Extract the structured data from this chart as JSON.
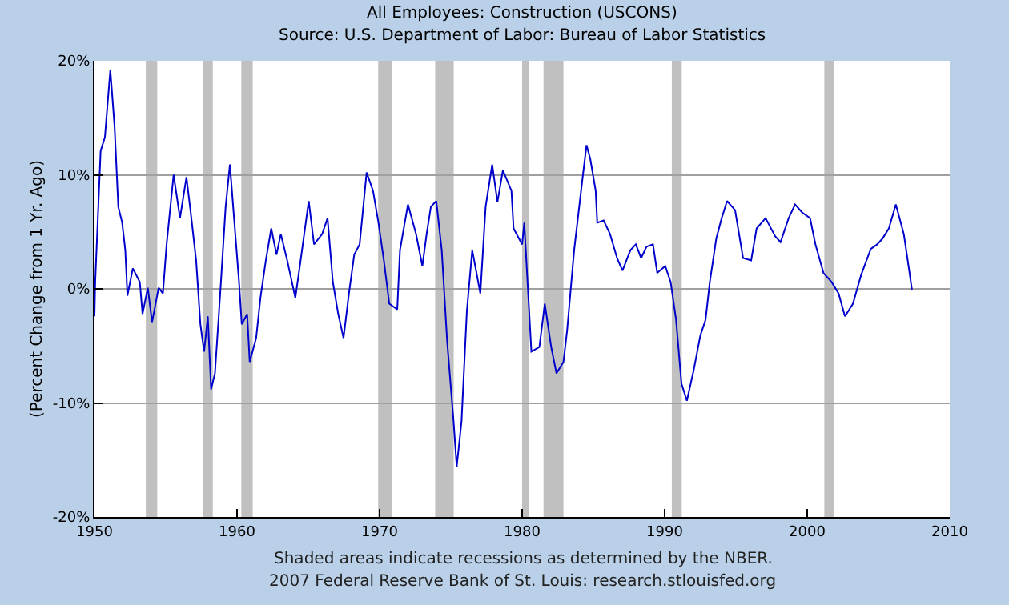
{
  "chart_data": {
    "type": "line",
    "title": "All Employees: Construction (USCONS)",
    "subtitle": "Source: U.S. Department of Labor: Bureau of Labor Statistics",
    "ylabel": "(Percent Change from 1 Yr. Ago)",
    "x": [
      1950.0,
      1950.05,
      1950.43,
      1950.73,
      1951.11,
      1951.41,
      1951.67,
      1951.94,
      1952.16,
      1952.31,
      1952.69,
      1953.18,
      1953.37,
      1953.74,
      1954.04,
      1954.5,
      1954.8,
      1955.06,
      1955.55,
      1956.0,
      1956.45,
      1956.75,
      1957.13,
      1957.43,
      1957.69,
      1957.95,
      1958.18,
      1958.45,
      1958.82,
      1959.2,
      1959.5,
      1959.76,
      1960.14,
      1960.33,
      1960.71,
      1960.89,
      1961.34,
      1961.64,
      1962.02,
      1962.4,
      1962.77,
      1963.07,
      1963.52,
      1964.09,
      1964.46,
      1965.03,
      1965.4,
      1965.97,
      1966.35,
      1966.72,
      1967.1,
      1967.47,
      1967.85,
      1968.22,
      1968.6,
      1969.09,
      1969.54,
      1969.92,
      1970.3,
      1970.68,
      1971.24,
      1971.43,
      1971.99,
      1972.56,
      1973.0,
      1973.3,
      1973.6,
      1973.98,
      1974.36,
      1974.74,
      1975.19,
      1975.41,
      1975.75,
      1976.12,
      1976.5,
      1977.07,
      1977.44,
      1977.9,
      1978.27,
      1978.65,
      1979.25,
      1979.4,
      1980.0,
      1980.15,
      1980.65,
      1981.21,
      1981.59,
      1982.04,
      1982.41,
      1982.9,
      1983.16,
      1983.65,
      1984.22,
      1984.52,
      1984.78,
      1985.16,
      1985.27,
      1985.72,
      1986.17,
      1986.66,
      1987.04,
      1987.6,
      1987.98,
      1988.35,
      1988.73,
      1989.18,
      1989.48,
      1990.04,
      1990.42,
      1990.8,
      1991.18,
      1991.56,
      1992.04,
      1992.5,
      1992.87,
      1993.17,
      1993.62,
      1994.0,
      1994.38,
      1994.94,
      1995.5,
      1996.07,
      1996.45,
      1997.08,
      1997.76,
      1998.13,
      1998.7,
      1999.15,
      1999.64,
      2000.2,
      2000.58,
      2001.14,
      2001.71,
      2002.2,
      2002.65,
      2003.21,
      2003.78,
      2004.46,
      2004.91,
      2005.28,
      2005.73,
      2006.22,
      2006.48,
      2006.78,
      2007.16,
      2007.35
    ],
    "series": [
      {
        "color": "#0000cc",
        "values": [
          -2.4,
          0.6,
          12.1,
          13.3,
          19.2,
          14.2,
          7.2,
          5.8,
          3.4,
          -0.6,
          1.8,
          0.6,
          -2.2,
          0.1,
          -2.9,
          0.1,
          -0.4,
          3.9,
          10.0,
          6.2,
          9.8,
          6.7,
          2.5,
          -3.1,
          -5.5,
          -2.4,
          -8.8,
          -7.4,
          -0.4,
          7.2,
          10.9,
          6.7,
          0.6,
          -3.1,
          -2.2,
          -6.4,
          -4.3,
          -0.8,
          2.5,
          5.3,
          3.0,
          4.8,
          2.5,
          -0.8,
          2.5,
          7.7,
          3.9,
          4.8,
          6.2,
          0.6,
          -2.2,
          -4.3,
          -0.4,
          3.0,
          3.9,
          10.2,
          8.6,
          5.8,
          2.5,
          -1.3,
          -1.8,
          3.4,
          7.4,
          4.8,
          2.0,
          4.8,
          7.2,
          7.7,
          3.4,
          -4.6,
          -11.6,
          -15.6,
          -11.6,
          -2.0,
          3.4,
          -0.4,
          7.2,
          10.9,
          7.6,
          10.4,
          8.6,
          5.3,
          3.9,
          5.8,
          -5.5,
          -5.1,
          -1.3,
          -5.1,
          -7.4,
          -6.4,
          -3.6,
          3.4,
          9.5,
          12.6,
          11.4,
          8.6,
          5.8,
          6.0,
          4.8,
          2.7,
          1.6,
          3.4,
          3.9,
          2.7,
          3.7,
          3.9,
          1.4,
          2.0,
          0.6,
          -2.7,
          -8.3,
          -9.8,
          -7.1,
          -4.1,
          -2.7,
          0.6,
          4.4,
          6.2,
          7.7,
          6.9,
          2.7,
          2.5,
          5.3,
          6.2,
          4.6,
          4.1,
          6.2,
          7.4,
          6.7,
          6.2,
          3.9,
          1.4,
          0.6,
          -0.4,
          -2.4,
          -1.3,
          1.2,
          3.5,
          3.9,
          4.4,
          5.3,
          7.4,
          6.2,
          4.8,
          1.6,
          -0.1
        ]
      }
    ],
    "xlim": [
      1950,
      2010
    ],
    "xticks": [
      1950,
      1960,
      1970,
      1980,
      1990,
      2000,
      2010
    ],
    "ylim": [
      -20,
      20
    ],
    "yticks": [
      {
        "value": -20,
        "label": "-20%"
      },
      {
        "value": -10,
        "label": "-10%"
      },
      {
        "value": 0,
        "label": "0%"
      },
      {
        "value": 10,
        "label": "10%"
      },
      {
        "value": 20,
        "label": "20%"
      }
    ],
    "bands": [
      {
        "axis": "x",
        "from": 1953.6,
        "to": 1954.4,
        "color": "#c0c0c0"
      },
      {
        "axis": "x",
        "from": 1957.6,
        "to": 1958.3,
        "color": "#c0c0c0"
      },
      {
        "axis": "x",
        "from": 1960.3,
        "to": 1961.1,
        "color": "#c0c0c0"
      },
      {
        "axis": "x",
        "from": 1969.9,
        "to": 1970.9,
        "color": "#c0c0c0"
      },
      {
        "axis": "x",
        "from": 1973.9,
        "to": 1975.2,
        "color": "#c0c0c0"
      },
      {
        "axis": "x",
        "from": 1980.0,
        "to": 1980.5,
        "color": "#c0c0c0"
      },
      {
        "axis": "x",
        "from": 1981.5,
        "to": 1982.9,
        "color": "#c0c0c0"
      },
      {
        "axis": "x",
        "from": 1990.5,
        "to": 1991.2,
        "color": "#c0c0c0"
      },
      {
        "axis": "x",
        "from": 2001.2,
        "to": 2001.9,
        "color": "#c0c0c0"
      }
    ],
    "annotations": [
      "Shaded areas indicate recessions as determined by the NBER.",
      "2007 Federal Reserve Bank of St. Louis: research.stlouisfed.org"
    ],
    "grid": "y"
  }
}
